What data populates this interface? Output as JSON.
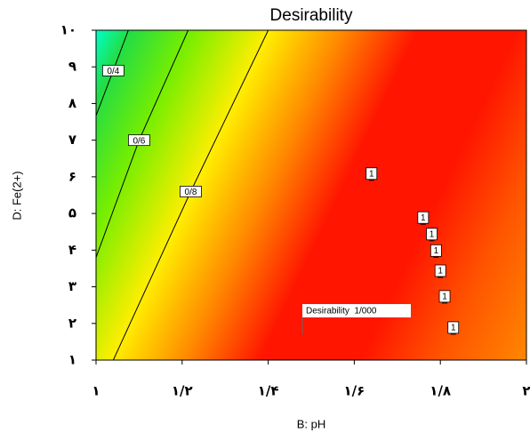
{
  "chart_data": {
    "type": "contour",
    "title": "Desirability",
    "x_label": "B: pH",
    "y_label": "D: Fe(2+)",
    "xlim": [
      1,
      2
    ],
    "ylim": [
      1,
      10
    ],
    "xticks": [
      {
        "value": 1,
        "label": "۱"
      },
      {
        "value": 1.2,
        "label": "۱/۲"
      },
      {
        "value": 1.4,
        "label": "۱/۴"
      },
      {
        "value": 1.6,
        "label": "۱/۶"
      },
      {
        "value": 1.8,
        "label": "۱/۸"
      },
      {
        "value": 2,
        "label": "۲"
      }
    ],
    "yticks": [
      {
        "value": 1,
        "label": "۱"
      },
      {
        "value": 2,
        "label": "۲"
      },
      {
        "value": 3,
        "label": "۳"
      },
      {
        "value": 4,
        "label": "۴"
      },
      {
        "value": 5,
        "label": "۵"
      },
      {
        "value": 6,
        "label": "۶"
      },
      {
        "value": 7,
        "label": "۷"
      },
      {
        "value": 8,
        "label": "۸"
      },
      {
        "value": 9,
        "label": "۹"
      },
      {
        "value": 10,
        "label": "۱۰"
      }
    ],
    "contours": [
      {
        "value": 0.4,
        "label": "0/4",
        "x": [
          1,
          1.04,
          1.075
        ],
        "y": [
          7.67,
          8.9,
          10
        ]
      },
      {
        "value": 0.6,
        "label": "0/6",
        "x": [
          1,
          1.1,
          1.214
        ],
        "y": [
          3.8,
          7.0,
          10
        ]
      },
      {
        "value": 0.8,
        "label": "0/8",
        "x": [
          1.04,
          1.22,
          1.4
        ],
        "y": [
          1,
          5.6,
          10
        ]
      }
    ],
    "points": {
      "x": [
        1.64,
        1.76,
        1.78,
        1.79,
        1.8,
        1.81,
        1.83
      ],
      "y": [
        6.1,
        4.9,
        4.45,
        4.0,
        3.45,
        2.75,
        1.9
      ],
      "labels": [
        "1",
        "1",
        "1",
        "1",
        "1",
        "1",
        "1"
      ]
    },
    "annotation": "Desirability  1/000"
  }
}
